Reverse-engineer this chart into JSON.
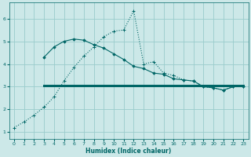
{
  "xlabel": "Humidex (Indice chaleur)",
  "bg_color": "#cce8e8",
  "grid_color": "#99cccc",
  "line_color": "#006666",
  "xlim": [
    -0.5,
    23.5
  ],
  "ylim": [
    0.7,
    6.7
  ],
  "yticks": [
    1,
    2,
    3,
    4,
    5,
    6
  ],
  "xticks": [
    0,
    1,
    2,
    3,
    4,
    5,
    6,
    7,
    8,
    9,
    10,
    11,
    12,
    13,
    14,
    15,
    16,
    17,
    18,
    19,
    20,
    21,
    22,
    23
  ],
  "line1_x": [
    0,
    1,
    2,
    3,
    4,
    5,
    6,
    7,
    8,
    9,
    10,
    11,
    12,
    13,
    14,
    15,
    16,
    17,
    18,
    19,
    20,
    21,
    22,
    23
  ],
  "line1_y": [
    1.2,
    1.45,
    1.75,
    2.1,
    2.55,
    3.25,
    3.85,
    4.35,
    4.75,
    5.2,
    5.45,
    5.5,
    6.35,
    4.0,
    4.1,
    3.6,
    3.5,
    3.3,
    3.25,
    3.0,
    2.95,
    2.85,
    3.0,
    3.0
  ],
  "line2_x": [
    3,
    4,
    5,
    6,
    7,
    8,
    9,
    10,
    11,
    12,
    13,
    14,
    15,
    16,
    17,
    18,
    19,
    20,
    21,
    22,
    23
  ],
  "line2_y": [
    4.3,
    4.75,
    5.0,
    5.1,
    5.05,
    4.85,
    4.7,
    4.45,
    4.2,
    3.9,
    3.8,
    3.6,
    3.55,
    3.35,
    3.3,
    3.25,
    3.0,
    2.95,
    2.85,
    3.0,
    3.0
  ],
  "line3_x": [
    3,
    23
  ],
  "line3_y": [
    3.05,
    3.05
  ]
}
